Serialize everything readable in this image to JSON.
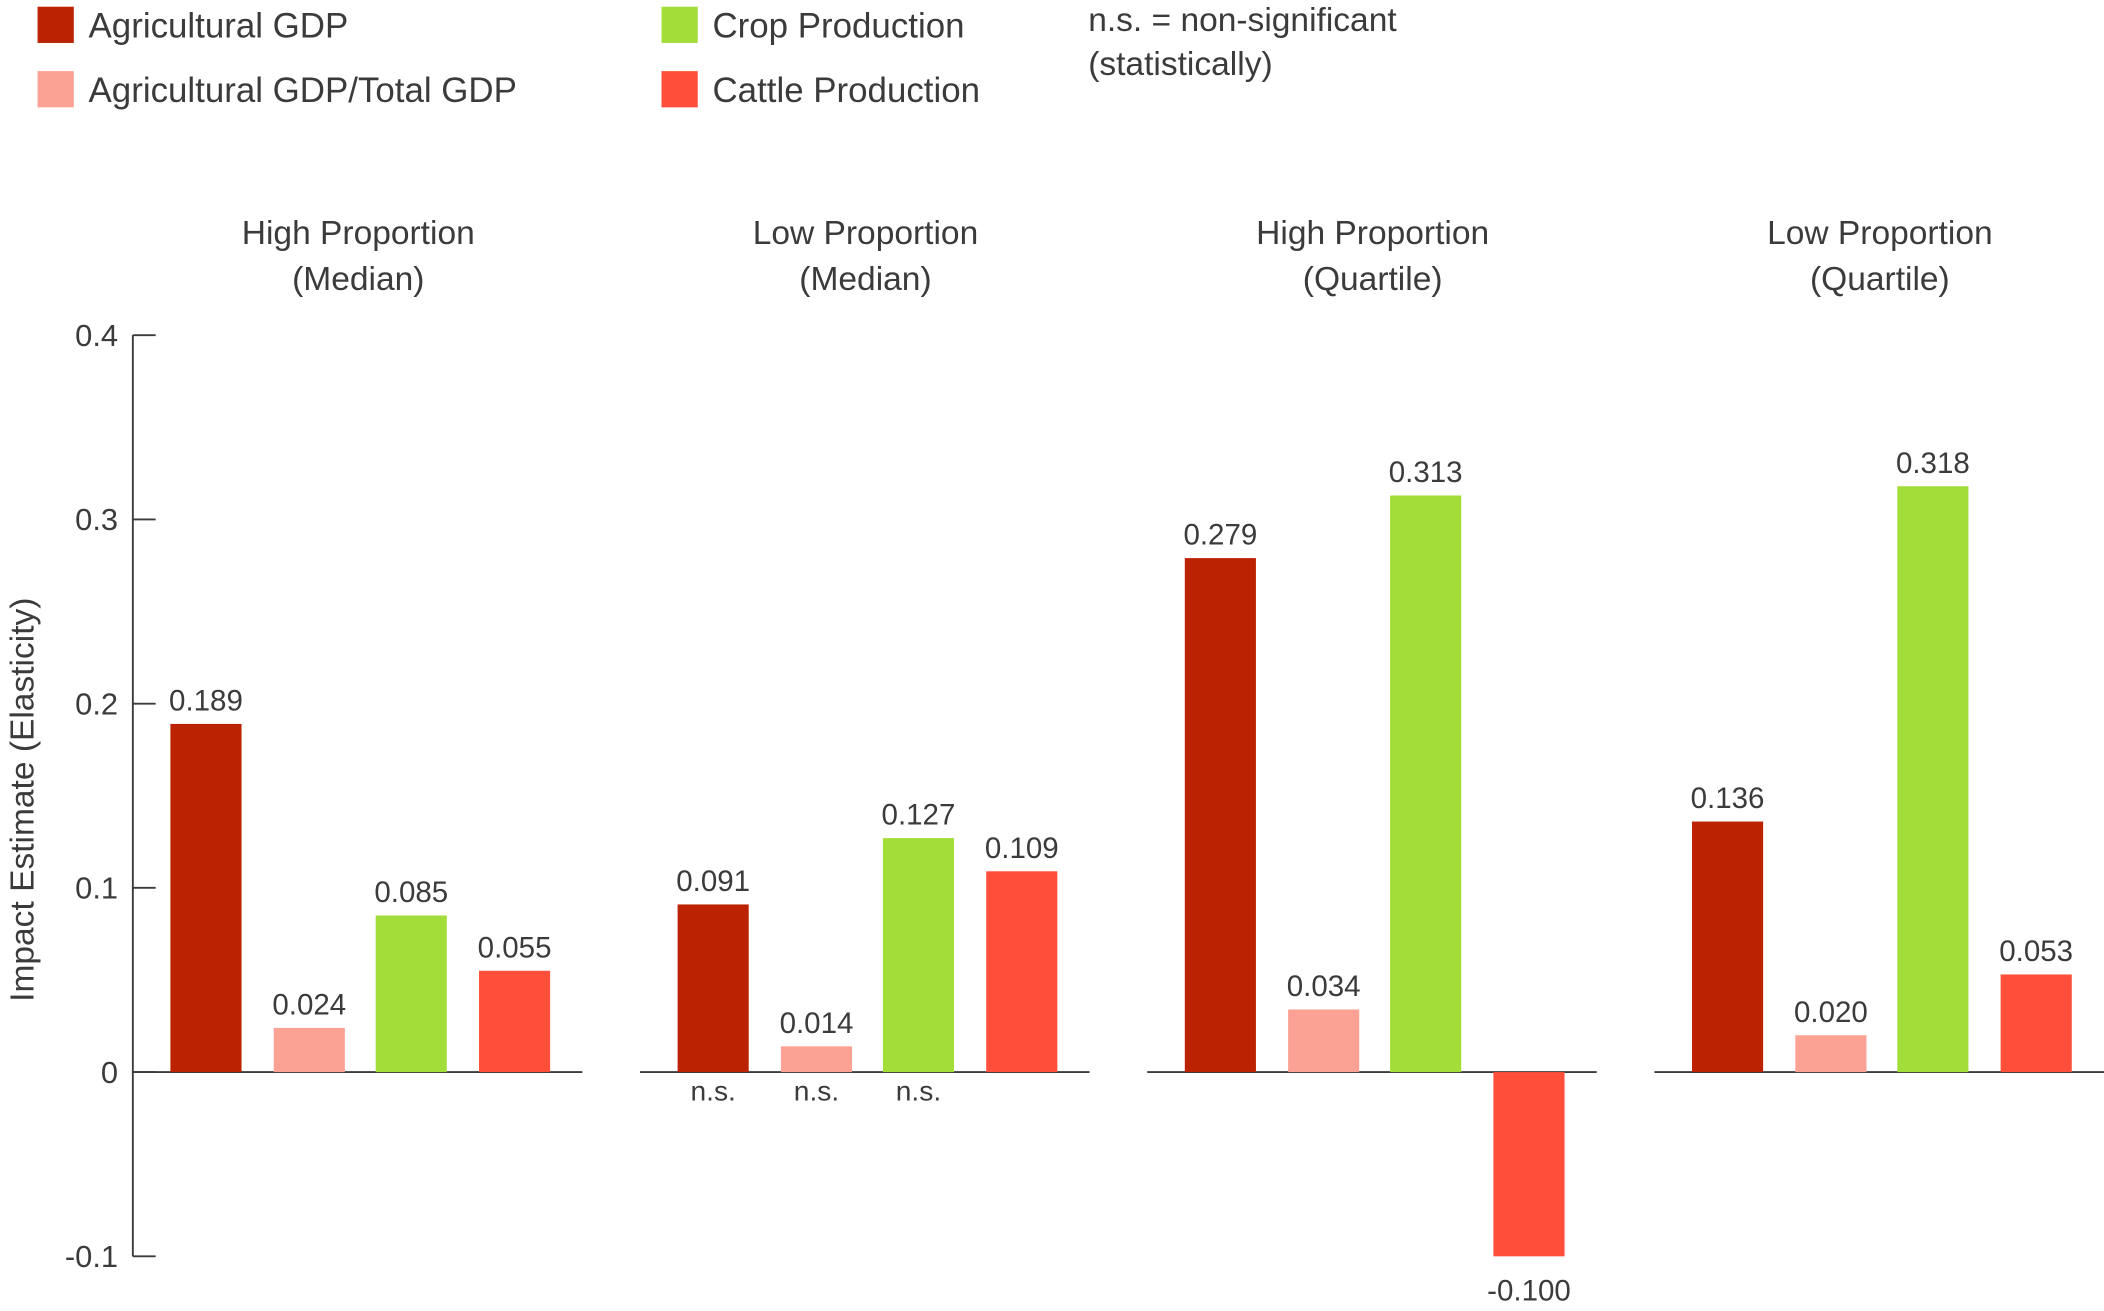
{
  "legend": [
    {
      "label": "Agricultural GDP",
      "color": "#bb2200"
    },
    {
      "label": "Agricultural GDP/Total GDP",
      "color": "#fca294"
    },
    {
      "label": "Crop Production",
      "color": "#a3dd3a"
    },
    {
      "label": "Cattle Production",
      "color": "#ff4e3a"
    }
  ],
  "note_lines": [
    "n.s. = non-significant",
    "(statistically)"
  ],
  "chart_data": {
    "type": "bar",
    "ylabel": "Impact Estimate (Elasticity)",
    "ylim": [
      -0.1,
      0.4
    ],
    "yticks": [
      0.4,
      0.3,
      0.2,
      0.1,
      0,
      -0.1
    ],
    "ytick_labels": [
      "0.4",
      "0.3",
      "0.2",
      "0.1",
      "0",
      "-0.1"
    ],
    "legend_position": "top",
    "grid": false,
    "series_names": [
      "Agricultural GDP",
      "Agricultural GDP/Total GDP",
      "Crop Production",
      "Cattle Production"
    ],
    "panels": [
      {
        "title_lines": [
          "High Proportion",
          "(Median)"
        ],
        "values": [
          0.189,
          0.024,
          0.085,
          0.055
        ],
        "value_labels": [
          "0.189",
          "0.024",
          "0.085",
          "0.055"
        ],
        "significance": [
          "",
          "",
          "",
          ""
        ]
      },
      {
        "title_lines": [
          "Low Proportion",
          "(Median)"
        ],
        "values": [
          0.091,
          0.014,
          0.127,
          0.109
        ],
        "value_labels": [
          "0.091",
          "0.014",
          "0.127",
          "0.109"
        ],
        "significance": [
          "n.s.",
          "n.s.",
          "n.s.",
          ""
        ]
      },
      {
        "title_lines": [
          "High Proportion",
          "(Quartile)"
        ],
        "values": [
          0.279,
          0.034,
          0.313,
          -0.1
        ],
        "value_labels": [
          "0.279",
          "0.034",
          "0.313",
          "-0.100"
        ],
        "significance": [
          "",
          "",
          "",
          ""
        ]
      },
      {
        "title_lines": [
          "Low Proportion",
          "(Quartile)"
        ],
        "values": [
          0.136,
          0.02,
          0.318,
          0.053
        ],
        "value_labels": [
          "0.136",
          "0.020",
          "0.318",
          "0.053"
        ],
        "significance": [
          "",
          "",
          "",
          ""
        ]
      }
    ]
  }
}
